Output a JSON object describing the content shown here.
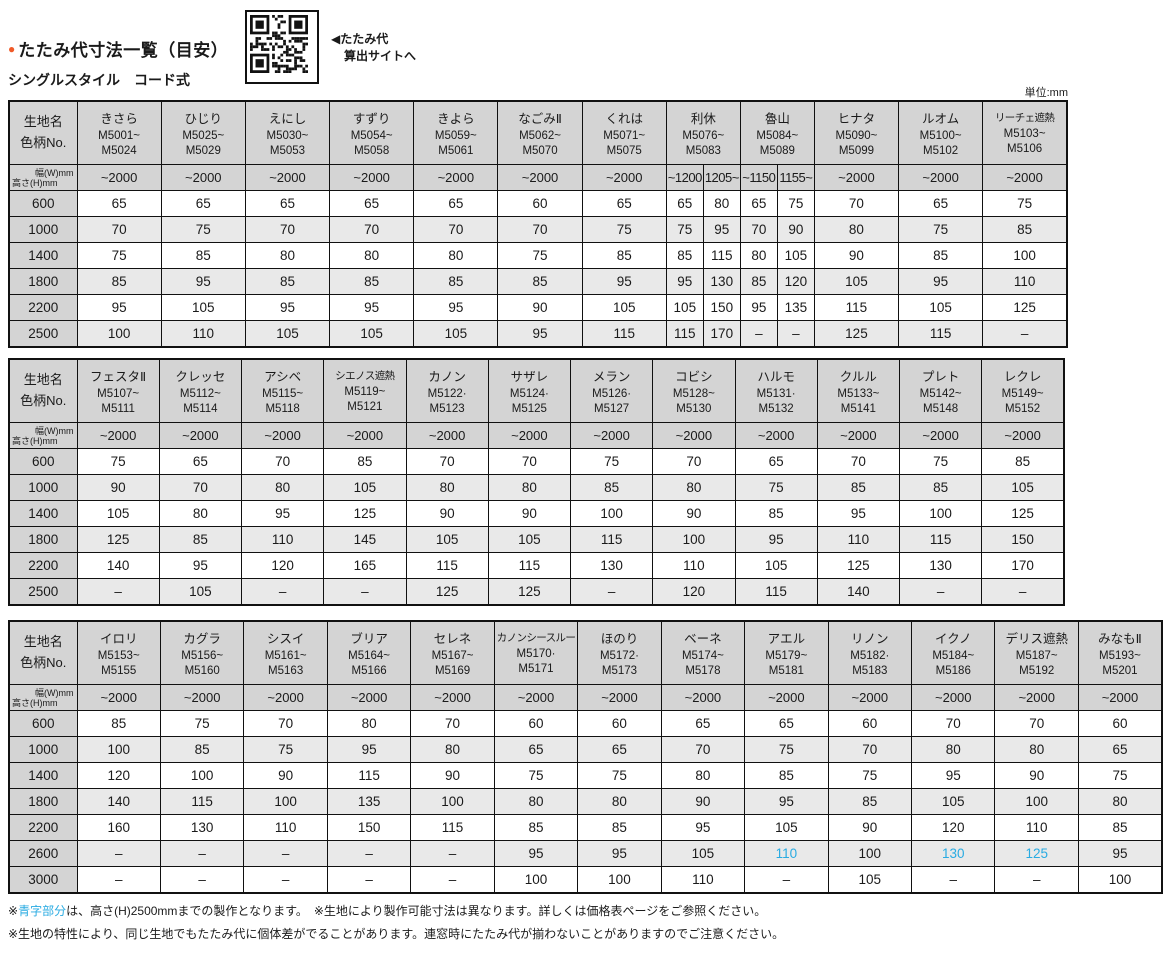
{
  "page": {
    "title_bullet": "●",
    "title": "たたみ代寸法一覧（目安）",
    "subtitle": "シングルスタイル　コード式",
    "qr_caption_line1": "◀たたみ代",
    "qr_caption_line2": "算出サイトへ",
    "unit_label": "単位:mm",
    "colors": {
      "accent_orange": "#f05a28",
      "blue_text": "#29abe2",
      "header_gray": "#d4d4d4",
      "alt_row_gray": "#e9e9e9"
    }
  },
  "tables": [
    {
      "name": "size-table-1",
      "corner_label_line1": "生地名",
      "corner_label_line2": "色柄No.",
      "axis": {
        "width_label": "幅(W)mm",
        "height_label": "高さ(H)mm"
      },
      "columns": [
        {
          "name": "きさら",
          "range_from": "M5001~",
          "range_to": "M5024",
          "widths": [
            "~2000"
          ]
        },
        {
          "name": "ひじり",
          "range_from": "M5025~",
          "range_to": "M5029",
          "widths": [
            "~2000"
          ]
        },
        {
          "name": "えにし",
          "range_from": "M5030~",
          "range_to": "M5053",
          "widths": [
            "~2000"
          ]
        },
        {
          "name": "すずり",
          "range_from": "M5054~",
          "range_to": "M5058",
          "widths": [
            "~2000"
          ]
        },
        {
          "name": "きよら",
          "range_from": "M5059~",
          "range_to": "M5061",
          "widths": [
            "~2000"
          ]
        },
        {
          "name": "なごみⅡ",
          "range_from": "M5062~",
          "range_to": "M5070",
          "widths": [
            "~2000"
          ]
        },
        {
          "name": "くれは",
          "range_from": "M5071~",
          "range_to": "M5075",
          "widths": [
            "~2000"
          ]
        },
        {
          "name": "利休",
          "range_from": "M5076~",
          "range_to": "M5083",
          "widths": [
            "~1200",
            "1205~"
          ]
        },
        {
          "name": "魯山",
          "range_from": "M5084~",
          "range_to": "M5089",
          "widths": [
            "~1150",
            "1155~"
          ]
        },
        {
          "name": "ヒナタ",
          "range_from": "M5090~",
          "range_to": "M5099",
          "widths": [
            "~2000"
          ]
        },
        {
          "name": "ルオム",
          "range_from": "M5100~",
          "range_to": "M5102",
          "widths": [
            "~2000"
          ]
        },
        {
          "name": "リーチェ遮熱",
          "range_from": "M5103~",
          "range_to": "M5106",
          "widths": [
            "~2000"
          ]
        }
      ],
      "rows": [
        {
          "h": "600",
          "v": [
            "65",
            "65",
            "65",
            "65",
            "65",
            "60",
            "65",
            "65",
            "80",
            "65",
            "75",
            "70",
            "65",
            "75"
          ]
        },
        {
          "h": "1000",
          "v": [
            "70",
            "75",
            "70",
            "70",
            "70",
            "70",
            "75",
            "75",
            "95",
            "70",
            "90",
            "80",
            "75",
            "85"
          ]
        },
        {
          "h": "1400",
          "v": [
            "75",
            "85",
            "80",
            "80",
            "80",
            "75",
            "85",
            "85",
            "115",
            "80",
            "105",
            "90",
            "85",
            "100"
          ]
        },
        {
          "h": "1800",
          "v": [
            "85",
            "95",
            "85",
            "85",
            "85",
            "85",
            "95",
            "95",
            "130",
            "85",
            "120",
            "105",
            "95",
            "110"
          ]
        },
        {
          "h": "2200",
          "v": [
            "95",
            "105",
            "95",
            "95",
            "95",
            "90",
            "105",
            "105",
            "150",
            "95",
            "135",
            "115",
            "105",
            "125"
          ]
        },
        {
          "h": "2500",
          "v": [
            "100",
            "110",
            "105",
            "105",
            "105",
            "95",
            "115",
            "115",
            "170",
            "–",
            "–",
            "125",
            "115",
            "–"
          ]
        }
      ],
      "blue_cells": []
    },
    {
      "name": "size-table-2",
      "corner_label_line1": "生地名",
      "corner_label_line2": "色柄No.",
      "axis": {
        "width_label": "幅(W)mm",
        "height_label": "高さ(H)mm"
      },
      "columns": [
        {
          "name": "フェスタⅡ",
          "range_from": "M5107~",
          "range_to": "M5111",
          "widths": [
            "~2000"
          ]
        },
        {
          "name": "クレッセ",
          "range_from": "M5112~",
          "range_to": "M5114",
          "widths": [
            "~2000"
          ]
        },
        {
          "name": "アシベ",
          "range_from": "M5115~",
          "range_to": "M5118",
          "widths": [
            "~2000"
          ]
        },
        {
          "name": "シエノス遮熱",
          "range_from": "M5119~",
          "range_to": "M5121",
          "widths": [
            "~2000"
          ]
        },
        {
          "name": "カノン",
          "range_from": "M5122·",
          "range_to": "M5123",
          "widths": [
            "~2000"
          ]
        },
        {
          "name": "サザレ",
          "range_from": "M5124·",
          "range_to": "M5125",
          "widths": [
            "~2000"
          ]
        },
        {
          "name": "メラン",
          "range_from": "M5126·",
          "range_to": "M5127",
          "widths": [
            "~2000"
          ]
        },
        {
          "name": "コビシ",
          "range_from": "M5128~",
          "range_to": "M5130",
          "widths": [
            "~2000"
          ]
        },
        {
          "name": "ハルモ",
          "range_from": "M5131·",
          "range_to": "M5132",
          "widths": [
            "~2000"
          ]
        },
        {
          "name": "クルル",
          "range_from": "M5133~",
          "range_to": "M5141",
          "widths": [
            "~2000"
          ]
        },
        {
          "name": "プレト",
          "range_from": "M5142~",
          "range_to": "M5148",
          "widths": [
            "~2000"
          ]
        },
        {
          "name": "レクレ",
          "range_from": "M5149~",
          "range_to": "M5152",
          "widths": [
            "~2000"
          ]
        }
      ],
      "rows": [
        {
          "h": "600",
          "v": [
            "75",
            "65",
            "70",
            "85",
            "70",
            "70",
            "75",
            "70",
            "65",
            "70",
            "75",
            "85"
          ]
        },
        {
          "h": "1000",
          "v": [
            "90",
            "70",
            "80",
            "105",
            "80",
            "80",
            "85",
            "80",
            "75",
            "85",
            "85",
            "105"
          ]
        },
        {
          "h": "1400",
          "v": [
            "105",
            "80",
            "95",
            "125",
            "90",
            "90",
            "100",
            "90",
            "85",
            "95",
            "100",
            "125"
          ]
        },
        {
          "h": "1800",
          "v": [
            "125",
            "85",
            "110",
            "145",
            "105",
            "105",
            "115",
            "100",
            "95",
            "110",
            "115",
            "150"
          ]
        },
        {
          "h": "2200",
          "v": [
            "140",
            "95",
            "120",
            "165",
            "115",
            "115",
            "130",
            "110",
            "105",
            "125",
            "130",
            "170"
          ]
        },
        {
          "h": "2500",
          "v": [
            "–",
            "105",
            "–",
            "–",
            "125",
            "125",
            "–",
            "120",
            "115",
            "140",
            "–",
            "–"
          ]
        }
      ],
      "blue_cells": []
    },
    {
      "name": "size-table-3",
      "corner_label_line1": "生地名",
      "corner_label_line2": "色柄No.",
      "axis": {
        "width_label": "幅(W)mm",
        "height_label": "高さ(H)mm"
      },
      "columns": [
        {
          "name": "イロリ",
          "range_from": "M5153~",
          "range_to": "M5155",
          "widths": [
            "~2000"
          ]
        },
        {
          "name": "カグラ",
          "range_from": "M5156~",
          "range_to": "M5160",
          "widths": [
            "~2000"
          ]
        },
        {
          "name": "シスイ",
          "range_from": "M5161~",
          "range_to": "M5163",
          "widths": [
            "~2000"
          ]
        },
        {
          "name": "ブリア",
          "range_from": "M5164~",
          "range_to": "M5166",
          "widths": [
            "~2000"
          ]
        },
        {
          "name": "セレネ",
          "range_from": "M5167~",
          "range_to": "M5169",
          "widths": [
            "~2000"
          ]
        },
        {
          "name": "カノンシースルー",
          "range_from": "M5170·",
          "range_to": "M5171",
          "widths": [
            "~2000"
          ]
        },
        {
          "name": "ほのり",
          "range_from": "M5172·",
          "range_to": "M5173",
          "widths": [
            "~2000"
          ]
        },
        {
          "name": "ベーネ",
          "range_from": "M5174~",
          "range_to": "M5178",
          "widths": [
            "~2000"
          ]
        },
        {
          "name": "アエル",
          "range_from": "M5179~",
          "range_to": "M5181",
          "widths": [
            "~2000"
          ]
        },
        {
          "name": "リノン",
          "range_from": "M5182·",
          "range_to": "M5183",
          "widths": [
            "~2000"
          ]
        },
        {
          "name": "イクノ",
          "range_from": "M5184~",
          "range_to": "M5186",
          "widths": [
            "~2000"
          ]
        },
        {
          "name": "デリス遮熱",
          "range_from": "M5187~",
          "range_to": "M5192",
          "widths": [
            "~2000"
          ]
        },
        {
          "name": "みなもⅡ",
          "range_from": "M5193~",
          "range_to": "M5201",
          "widths": [
            "~2000"
          ]
        }
      ],
      "rows": [
        {
          "h": "600",
          "v": [
            "85",
            "75",
            "70",
            "80",
            "70",
            "60",
            "60",
            "65",
            "65",
            "60",
            "70",
            "70",
            "60"
          ]
        },
        {
          "h": "1000",
          "v": [
            "100",
            "85",
            "75",
            "95",
            "80",
            "65",
            "65",
            "70",
            "75",
            "70",
            "80",
            "80",
            "65"
          ]
        },
        {
          "h": "1400",
          "v": [
            "120",
            "100",
            "90",
            "115",
            "90",
            "75",
            "75",
            "80",
            "85",
            "75",
            "95",
            "90",
            "75"
          ]
        },
        {
          "h": "1800",
          "v": [
            "140",
            "115",
            "100",
            "135",
            "100",
            "80",
            "80",
            "90",
            "95",
            "85",
            "105",
            "100",
            "80"
          ]
        },
        {
          "h": "2200",
          "v": [
            "160",
            "130",
            "110",
            "150",
            "115",
            "85",
            "85",
            "95",
            "105",
            "90",
            "120",
            "110",
            "85"
          ]
        },
        {
          "h": "2600",
          "v": [
            "–",
            "–",
            "–",
            "–",
            "–",
            "95",
            "95",
            "105",
            "110",
            "100",
            "130",
            "125",
            "95"
          ]
        },
        {
          "h": "3000",
          "v": [
            "–",
            "–",
            "–",
            "–",
            "–",
            "100",
            "100",
            "110",
            "–",
            "105",
            "–",
            "–",
            "100"
          ]
        }
      ],
      "blue_cells": [
        [
          5,
          8
        ],
        [
          5,
          10
        ],
        [
          5,
          11
        ]
      ]
    }
  ],
  "notes": [
    {
      "parts": [
        {
          "text": "※",
          "blue": false
        },
        {
          "text": "青字部分",
          "blue": true
        },
        {
          "text": "は、高さ(H)2500mmまでの製作となります。　※生地により製作可能寸法は異なります。詳しくは価格表ページをご参照ください。",
          "blue": false
        }
      ]
    },
    {
      "parts": [
        {
          "text": "※生地の特性により、同じ生地でもたたみ代に個体差がでることがあります。連窓時にたたみ代が揃わないことがありますのでご注意ください。",
          "blue": false
        }
      ]
    }
  ]
}
